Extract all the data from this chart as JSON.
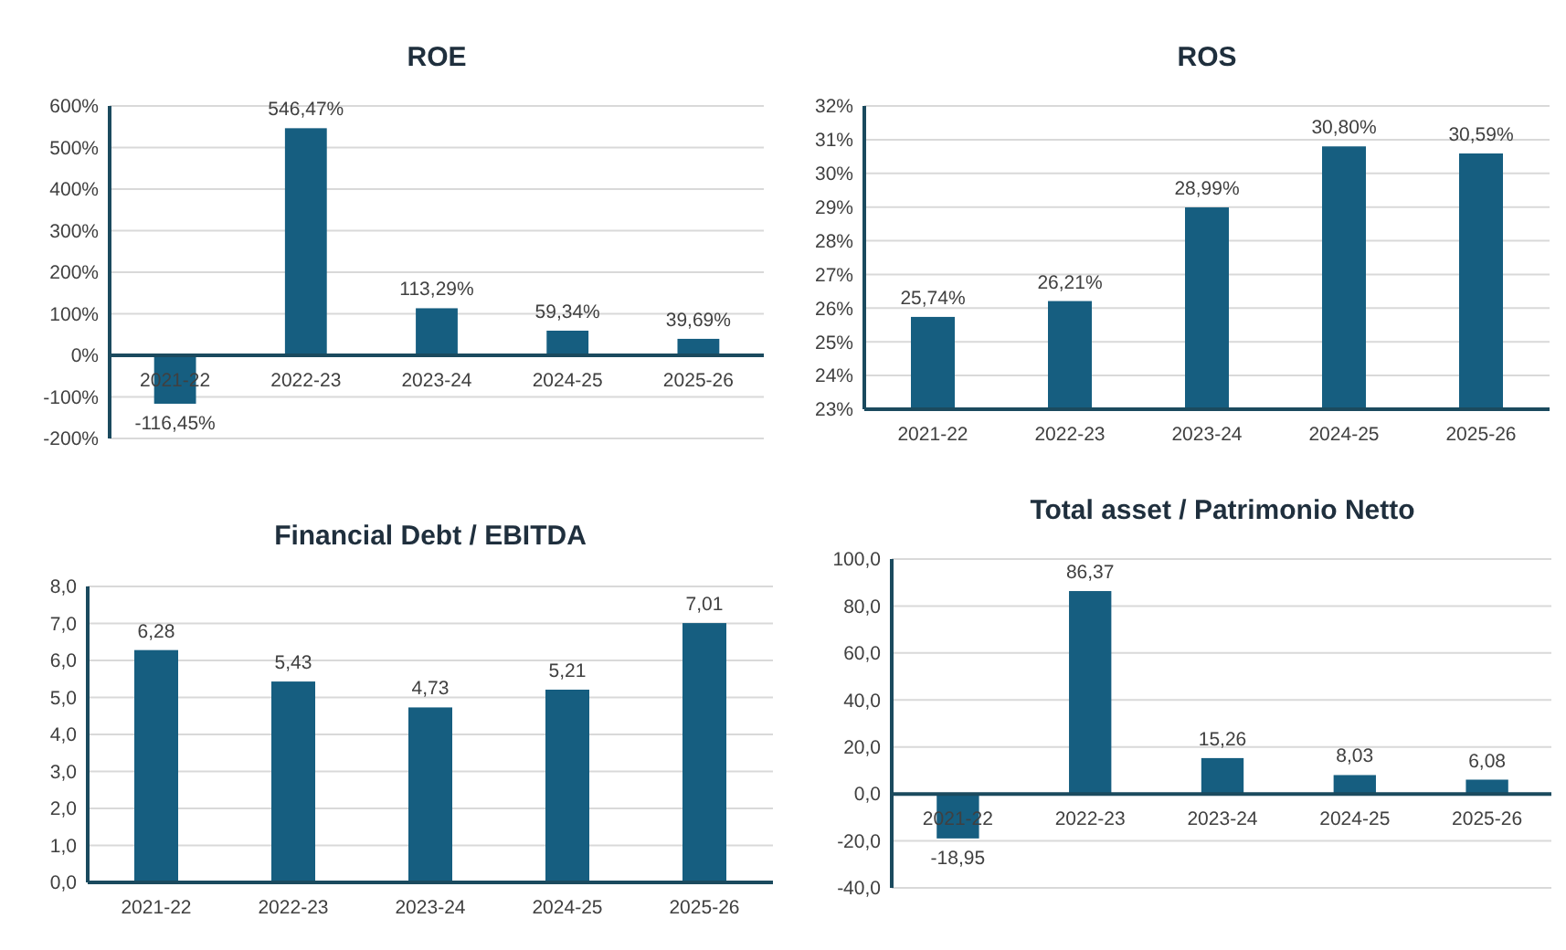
{
  "chart_data": [
    {
      "type": "bar",
      "title": "ROE",
      "categories": [
        "2021-22",
        "2022-23",
        "2023-24",
        "2024-25",
        "2025-26"
      ],
      "values": [
        -116.45,
        546.47,
        113.29,
        59.34,
        39.69
      ],
      "value_labels": [
        "-116,45%",
        "546,47%",
        "113,29%",
        "59,34%",
        "39,69%"
      ],
      "color": "#165e80",
      "ylim": [
        -200,
        600
      ],
      "yticks": [
        {
          "value": -200,
          "label": "-200%"
        },
        {
          "value": -100,
          "label": "-100%"
        },
        {
          "value": 0,
          "label": "0%"
        },
        {
          "value": 100,
          "label": "100%"
        },
        {
          "value": 200,
          "label": "200%"
        },
        {
          "value": 300,
          "label": "300%"
        },
        {
          "value": 400,
          "label": "400%"
        },
        {
          "value": 500,
          "label": "500%"
        },
        {
          "value": 600,
          "label": "600%"
        }
      ],
      "grid": "y"
    },
    {
      "type": "bar",
      "title": "ROS",
      "categories": [
        "2021-22",
        "2022-23",
        "2023-24",
        "2024-25",
        "2025-26"
      ],
      "values": [
        25.74,
        26.21,
        28.99,
        30.8,
        30.59
      ],
      "value_labels": [
        "25,74%",
        "26,21%",
        "28,99%",
        "30,80%",
        "30,59%"
      ],
      "color": "#165e80",
      "ylim": [
        23,
        32
      ],
      "yticks": [
        {
          "value": 23,
          "label": "23%"
        },
        {
          "value": 24,
          "label": "24%"
        },
        {
          "value": 25,
          "label": "25%"
        },
        {
          "value": 26,
          "label": "26%"
        },
        {
          "value": 27,
          "label": "27%"
        },
        {
          "value": 28,
          "label": "28%"
        },
        {
          "value": 29,
          "label": "29%"
        },
        {
          "value": 30,
          "label": "30%"
        },
        {
          "value": 31,
          "label": "31%"
        },
        {
          "value": 32,
          "label": "32%"
        }
      ],
      "grid": "y"
    },
    {
      "type": "bar",
      "title": "Financial Debt / EBITDA",
      "categories": [
        "2021-22",
        "2022-23",
        "2023-24",
        "2024-25",
        "2025-26"
      ],
      "values": [
        6.28,
        5.43,
        4.73,
        5.21,
        7.01
      ],
      "value_labels": [
        "6,28",
        "5,43",
        "4,73",
        "5,21",
        "7,01"
      ],
      "color": "#165e80",
      "ylim": [
        0,
        8
      ],
      "yticks": [
        {
          "value": 0,
          "label": "0,0"
        },
        {
          "value": 1,
          "label": "1,0"
        },
        {
          "value": 2,
          "label": "2,0"
        },
        {
          "value": 3,
          "label": "3,0"
        },
        {
          "value": 4,
          "label": "4,0"
        },
        {
          "value": 5,
          "label": "5,0"
        },
        {
          "value": 6,
          "label": "6,0"
        },
        {
          "value": 7,
          "label": "7,0"
        },
        {
          "value": 8,
          "label": "8,0"
        }
      ],
      "grid": "y"
    },
    {
      "type": "bar",
      "title": "Total asset /  Patrimonio Netto",
      "categories": [
        "2021-22",
        "2022-23",
        "2023-24",
        "2024-25",
        "2025-26"
      ],
      "values": [
        -18.95,
        86.37,
        15.26,
        8.03,
        6.08
      ],
      "value_labels": [
        "-18,95",
        "86,37",
        "15,26",
        "8,03",
        "6,08"
      ],
      "color": "#165e80",
      "ylim": [
        -40,
        100
      ],
      "yticks": [
        {
          "value": -40,
          "label": "-40,0"
        },
        {
          "value": -20,
          "label": "-20,0"
        },
        {
          "value": 0,
          "label": "0,0"
        },
        {
          "value": 20,
          "label": "20,0"
        },
        {
          "value": 40,
          "label": "40,0"
        },
        {
          "value": 60,
          "label": "60,0"
        },
        {
          "value": 80,
          "label": "80,0"
        },
        {
          "value": 100,
          "label": "100,0"
        }
      ],
      "grid": "y"
    }
  ]
}
